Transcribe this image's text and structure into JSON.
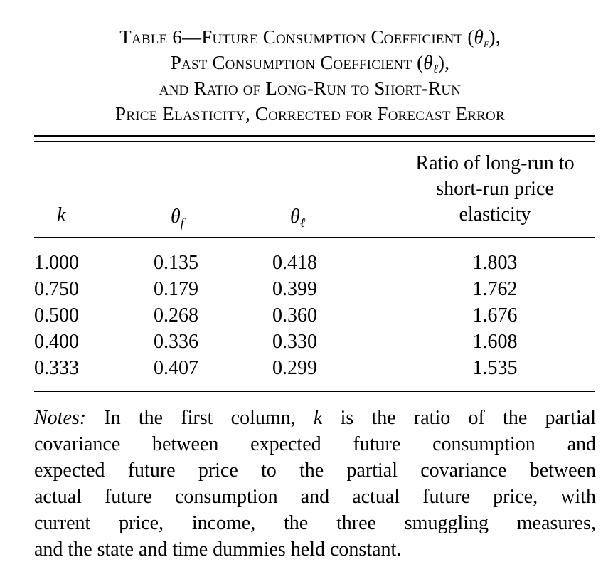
{
  "table": {
    "title_lines": [
      {
        "pre": "Table 6—Future Consumption Coefficient (",
        "theta": "θ",
        "sub": "f",
        "post": "),"
      },
      {
        "pre": "Past Consumption Coefficient (",
        "theta": "θ",
        "sub": "ℓ",
        "post": "),"
      },
      {
        "pre": "and Ratio of Long-Run to Short-Run",
        "theta": "",
        "sub": "",
        "post": ""
      },
      {
        "pre": "Price Elasticity, Corrected for Forecast Error",
        "theta": "",
        "sub": "",
        "post": ""
      }
    ],
    "headers": {
      "k": "k",
      "theta_f": {
        "symbol": "θ",
        "sub": "f"
      },
      "theta_l": {
        "symbol": "θ",
        "sub": "ℓ"
      },
      "ratio_lines": [
        "Ratio of long-run to",
        "short-run price",
        "elasticity"
      ]
    },
    "rows": [
      {
        "k": "1.000",
        "theta_f": "0.135",
        "theta_l": "0.418",
        "ratio": "1.803"
      },
      {
        "k": "0.750",
        "theta_f": "0.179",
        "theta_l": "0.399",
        "ratio": "1.762"
      },
      {
        "k": "0.500",
        "theta_f": "0.268",
        "theta_l": "0.360",
        "ratio": "1.676"
      },
      {
        "k": "0.400",
        "theta_f": "0.336",
        "theta_l": "0.330",
        "ratio": "1.608"
      },
      {
        "k": "0.333",
        "theta_f": "0.407",
        "theta_l": "0.299",
        "ratio": "1.535"
      }
    ],
    "notes": {
      "label": "Notes:",
      "line1_a": " In the first column, ",
      "line1_k": "k",
      "line1_b": " is the ratio of the partial",
      "lines": [
        "covariance between expected future consumption and",
        "expected future price to the partial covariance between",
        "actual future consumption and actual future price, with",
        "current price, income, the three smuggling measures,",
        "and the state and time dummies held constant."
      ]
    }
  }
}
